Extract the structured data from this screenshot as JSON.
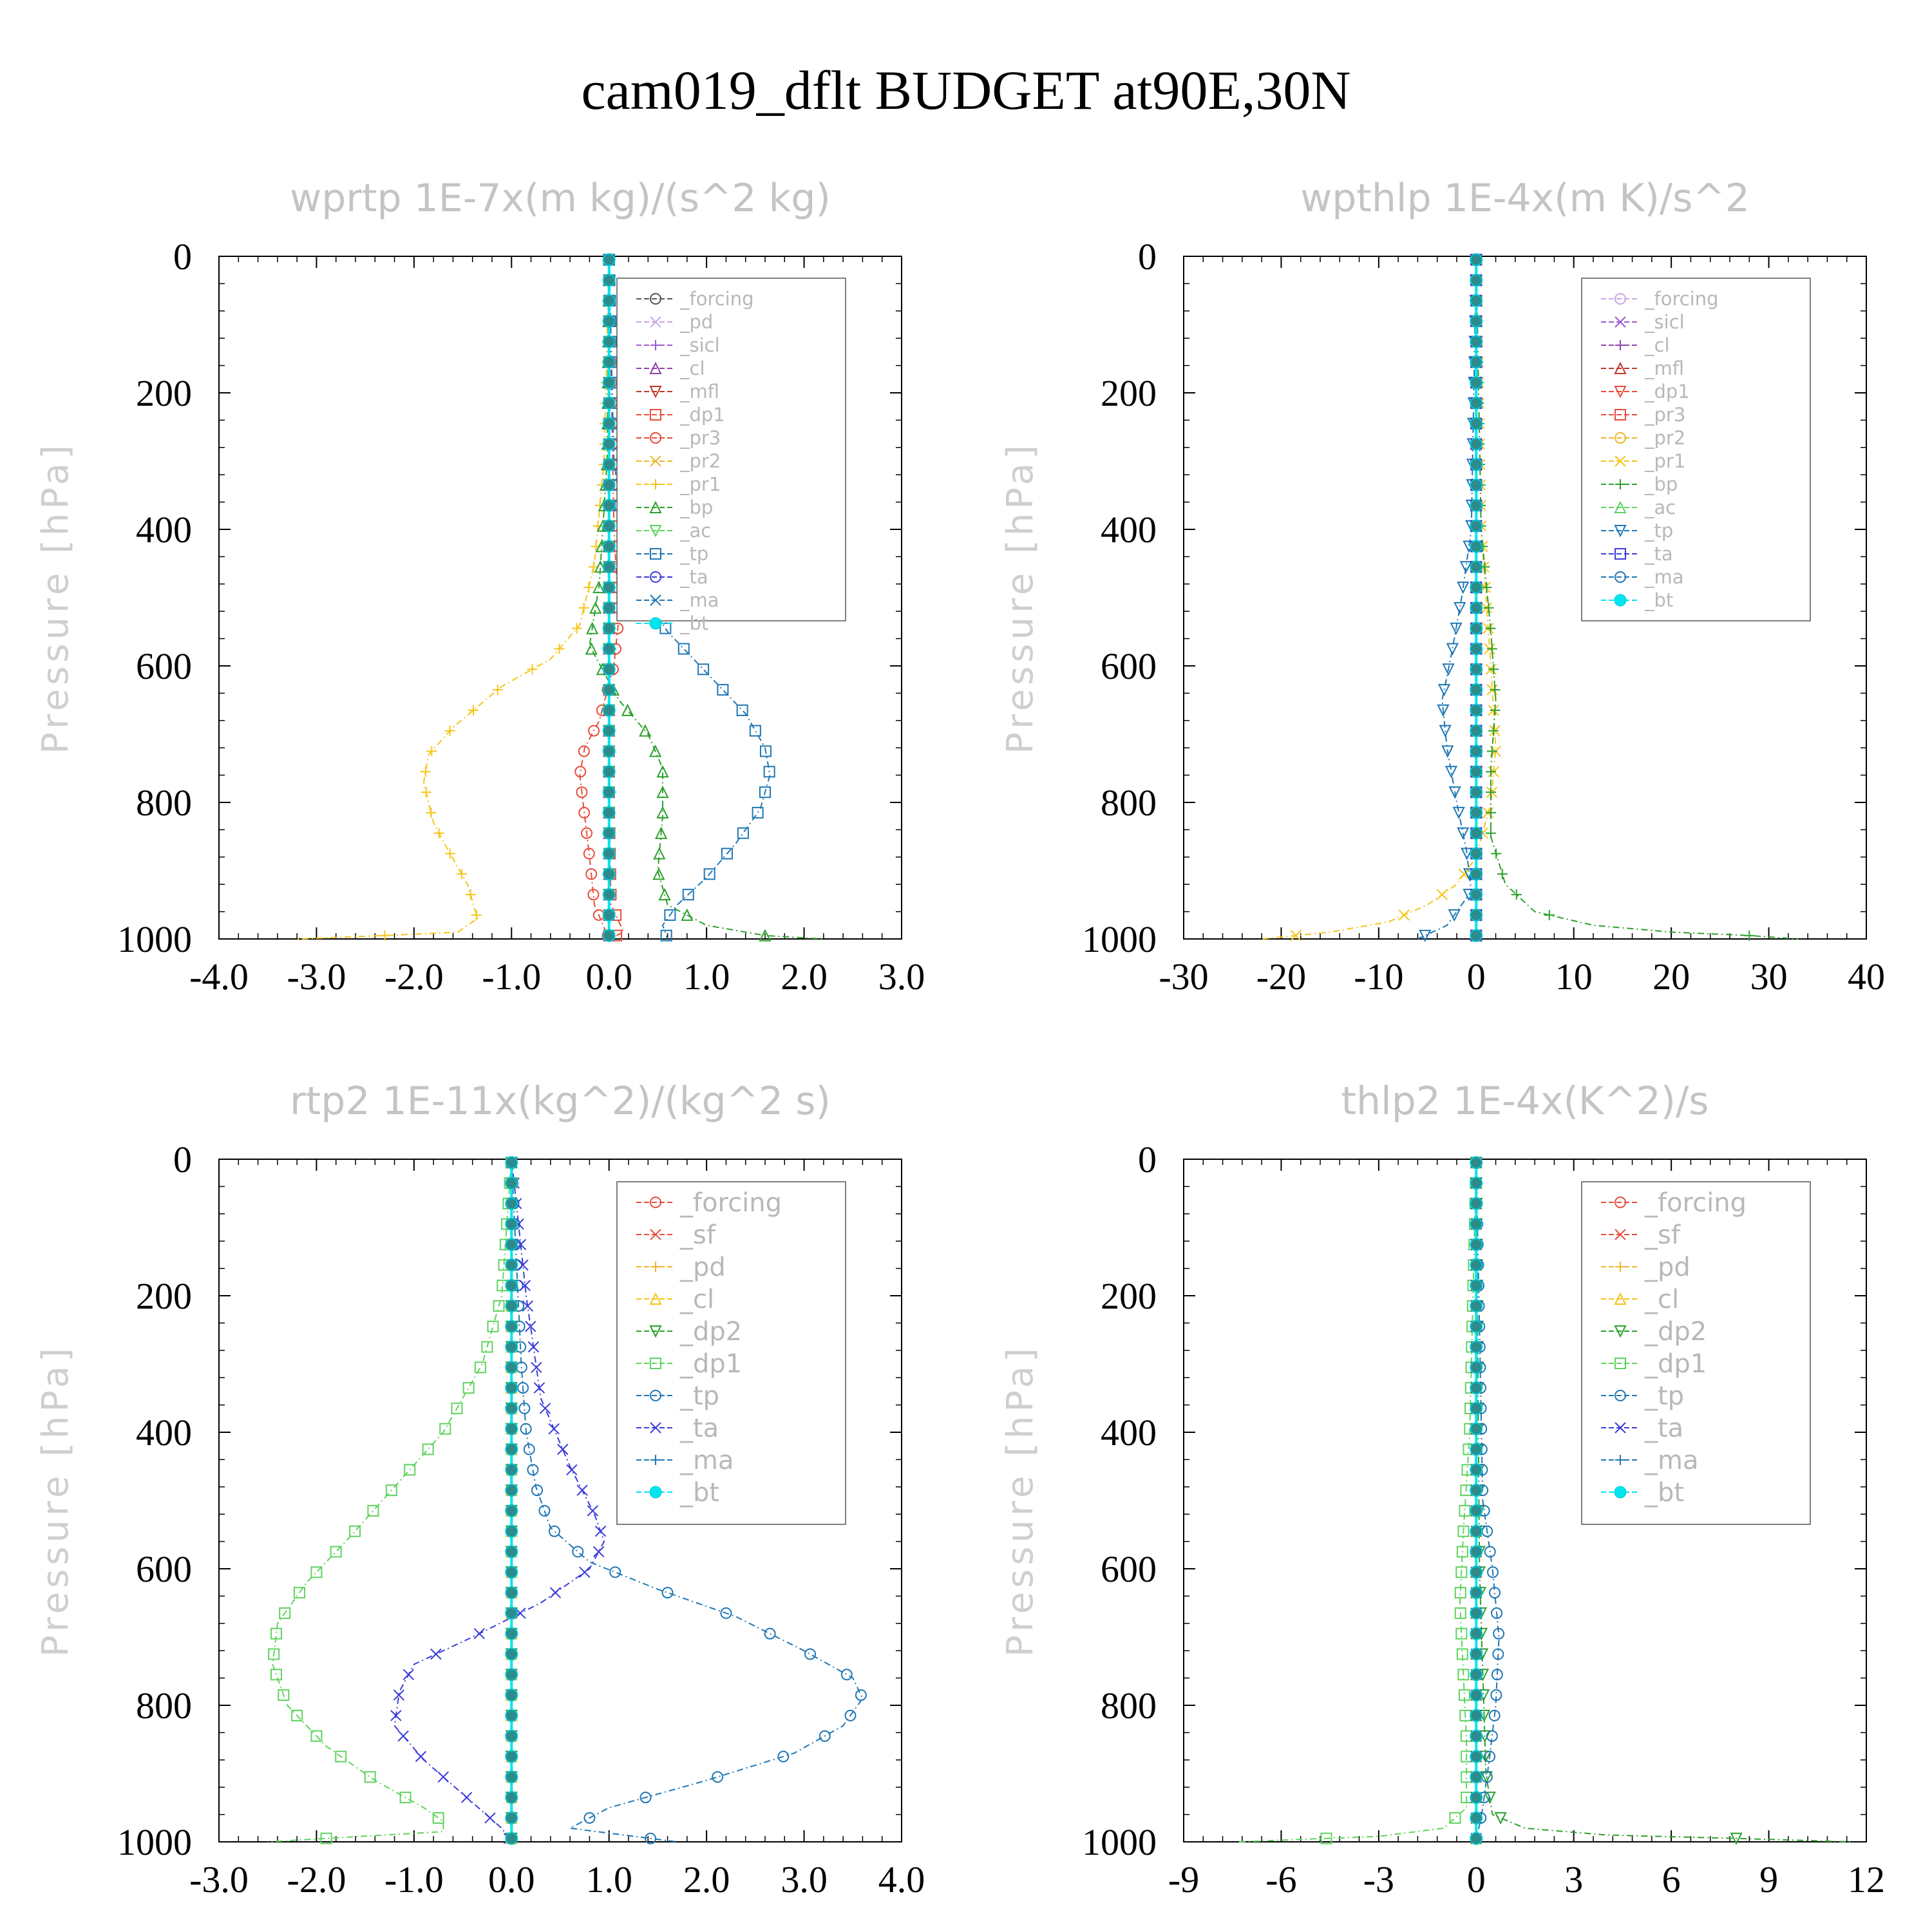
{
  "title": "cam019_dflt  BUDGET at90E,30N",
  "ylabel": "Pressure [hPa]",
  "chart_data": [
    {
      "type": "line",
      "title": "wprtp  1E-7x(m kg)/(s^2 kg)",
      "ylabel": "Pressure [hPa]",
      "xlim": [
        -4,
        3
      ],
      "xticks": [
        "-4.0",
        "-3.0",
        "-2.0",
        "-1.0",
        "0.0",
        "1.0",
        "2.0",
        "3.0"
      ],
      "ylim": [
        1000,
        0
      ],
      "yticks": [
        "0",
        "200",
        "400",
        "600",
        "800",
        "1000"
      ],
      "series": [
        {
          "name": "_forcing",
          "color": "#555555",
          "x": [
            0,
            0
          ],
          "y": [
            0,
            1000
          ]
        },
        {
          "name": "_pd",
          "color": "#c9a6e6",
          "x": [
            0,
            0
          ],
          "y": [
            0,
            1000
          ]
        },
        {
          "name": "_sicl",
          "color": "#9b59d0",
          "x": [
            0,
            0
          ],
          "y": [
            0,
            1000
          ]
        },
        {
          "name": "_cl",
          "color": "#8e44ad",
          "x": [
            0,
            0
          ],
          "y": [
            0,
            1000
          ]
        },
        {
          "name": "_mfl",
          "color": "#c0392b",
          "x": [
            0,
            0
          ],
          "y": [
            0,
            1000
          ]
        },
        {
          "name": "_dp1",
          "color": "#e74c3c",
          "x": [
            0,
            0,
            0.02,
            0.15,
            0
          ],
          "y": [
            0,
            800,
            950,
            990,
            1000
          ]
        },
        {
          "name": "_pr3",
          "color": "#e74c3c",
          "x": [
            0,
            0.05,
            0.1,
            0.05,
            -0.1,
            -0.25,
            -0.3,
            -0.25,
            -0.2,
            -0.15,
            0
          ],
          "y": [
            0,
            400,
            530,
            600,
            680,
            720,
            760,
            820,
            880,
            950,
            1000
          ]
        },
        {
          "name": "_pr2",
          "color": "#f0b429",
          "x": [
            0,
            0
          ],
          "y": [
            0,
            1000
          ]
        },
        {
          "name": "_pr1",
          "color": "#f5c518",
          "x": [
            0,
            -0.05,
            -0.15,
            -0.3,
            -0.6,
            -1.1,
            -1.6,
            -1.85,
            -1.9,
            -1.8,
            -1.65,
            -1.45,
            -1.35,
            -1.55,
            -2.3,
            -3.2
          ],
          "y": [
            0,
            300,
            450,
            540,
            590,
            630,
            690,
            730,
            770,
            830,
            870,
            920,
            970,
            990,
            995,
            1000
          ]
        },
        {
          "name": "_bp",
          "color": "#2ca02c",
          "x": [
            0,
            -0.02,
            -0.1,
            -0.2,
            0.1,
            0.4,
            0.55,
            0.55,
            0.5,
            0.6,
            1.0,
            1.6,
            2.2
          ],
          "y": [
            0,
            300,
            480,
            570,
            650,
            700,
            750,
            820,
            900,
            950,
            980,
            995,
            1000
          ]
        },
        {
          "name": "_ac",
          "color": "#5fd35f",
          "x": [
            0,
            0
          ],
          "y": [
            0,
            1000
          ]
        },
        {
          "name": "_tp",
          "color": "#1f77b4",
          "x": [
            0,
            0.05,
            0.15,
            0.3,
            0.6,
            1.0,
            1.4,
            1.6,
            1.65,
            1.55,
            1.3,
            1.0,
            0.7,
            0.55,
            0.6
          ],
          "y": [
            0,
            300,
            400,
            480,
            550,
            610,
            670,
            720,
            760,
            810,
            860,
            910,
            950,
            980,
            1000
          ]
        },
        {
          "name": "_ta",
          "color": "#3b3bd9",
          "x": [
            0,
            0
          ],
          "y": [
            0,
            1000
          ]
        },
        {
          "name": "_ma",
          "color": "#1f77b4",
          "x": [
            0,
            0
          ],
          "y": [
            0,
            1000
          ]
        },
        {
          "name": "_bt",
          "color": "#00e5ee",
          "x": [
            0,
            0
          ],
          "y": [
            0,
            1000
          ]
        }
      ]
    },
    {
      "type": "line",
      "title": "wpthlp  1E-4x(m K)/s^2",
      "ylabel": "Pressure [hPa]",
      "xlim": [
        -30,
        40
      ],
      "xticks": [
        "-30",
        "-20",
        "-10",
        "0",
        "10",
        "20",
        "30",
        "40"
      ],
      "ylim": [
        1000,
        0
      ],
      "yticks": [
        "0",
        "200",
        "400",
        "600",
        "800",
        "1000"
      ],
      "series": [
        {
          "name": "_forcing",
          "color": "#c9a6e6",
          "x": [
            0,
            0
          ],
          "y": [
            0,
            1000
          ]
        },
        {
          "name": "_sicl",
          "color": "#9b59d0",
          "x": [
            0,
            0
          ],
          "y": [
            0,
            1000
          ]
        },
        {
          "name": "_cl",
          "color": "#8e44ad",
          "x": [
            0,
            0
          ],
          "y": [
            0,
            1000
          ]
        },
        {
          "name": "_mfl",
          "color": "#c0392b",
          "x": [
            0,
            0
          ],
          "y": [
            0,
            1000
          ]
        },
        {
          "name": "_dp1",
          "color": "#e74c3c",
          "x": [
            0,
            0
          ],
          "y": [
            0,
            1000
          ]
        },
        {
          "name": "_pr3",
          "color": "#e74c3c",
          "x": [
            0,
            0
          ],
          "y": [
            0,
            1000
          ]
        },
        {
          "name": "_pr2",
          "color": "#f0b429",
          "x": [
            0,
            0
          ],
          "y": [
            0,
            1000
          ]
        },
        {
          "name": "_pr1",
          "color": "#f5c518",
          "x": [
            0,
            0.5,
            1.5,
            2,
            1.5,
            0,
            -2,
            -5,
            -9,
            -15,
            -22
          ],
          "y": [
            0,
            400,
            600,
            720,
            800,
            880,
            920,
            950,
            975,
            990,
            1000
          ]
        },
        {
          "name": "_bp",
          "color": "#2ca02c",
          "x": [
            0,
            0.5,
            1.5,
            2,
            1.5,
            1.5,
            3,
            6,
            12,
            20,
            28,
            33
          ],
          "y": [
            0,
            400,
            550,
            650,
            750,
            850,
            920,
            960,
            980,
            990,
            995,
            1000
          ]
        },
        {
          "name": "_ac",
          "color": "#5fd35f",
          "x": [
            0,
            0
          ],
          "y": [
            0,
            1000
          ]
        },
        {
          "name": "_tp",
          "color": "#1f77b4",
          "x": [
            0,
            -0.5,
            -1.5,
            -2.5,
            -3.5,
            -3,
            -2,
            -1,
            -0.5,
            -3,
            -6
          ],
          "y": [
            0,
            400,
            500,
            580,
            650,
            720,
            800,
            870,
            930,
            980,
            1000
          ]
        },
        {
          "name": "_ta",
          "color": "#3b3bd9",
          "x": [
            0,
            0
          ],
          "y": [
            0,
            1000
          ]
        },
        {
          "name": "_ma",
          "color": "#1f77b4",
          "x": [
            0,
            0
          ],
          "y": [
            0,
            1000
          ]
        },
        {
          "name": "_bt",
          "color": "#00e5ee",
          "x": [
            0,
            0
          ],
          "y": [
            0,
            1000
          ]
        }
      ]
    },
    {
      "type": "line",
      "title": "rtp2  1E-11x(kg^2)/(kg^2 s)",
      "ylabel": "Pressure [hPa]",
      "xlim": [
        -3,
        4
      ],
      "xticks": [
        "-3.0",
        "-2.0",
        "-1.0",
        "0.0",
        "1.0",
        "2.0",
        "3.0",
        "4.0"
      ],
      "ylim": [
        1000,
        0
      ],
      "yticks": [
        "0",
        "200",
        "400",
        "600",
        "800",
        "1000"
      ],
      "series": [
        {
          "name": "_forcing",
          "color": "#e74c3c",
          "x": [
            0,
            0
          ],
          "y": [
            0,
            1000
          ]
        },
        {
          "name": "_sf",
          "color": "#e74c3c",
          "x": [
            0,
            0
          ],
          "y": [
            0,
            1000
          ]
        },
        {
          "name": "_pd",
          "color": "#f0b429",
          "x": [
            0,
            0
          ],
          "y": [
            0,
            1000
          ]
        },
        {
          "name": "_cl",
          "color": "#f5c518",
          "x": [
            0,
            0
          ],
          "y": [
            0,
            1000
          ]
        },
        {
          "name": "_dp2",
          "color": "#2ca02c",
          "x": [
            0,
            0
          ],
          "y": [
            0,
            1000
          ]
        },
        {
          "name": "_dp1",
          "color": "#5fd35f",
          "x": [
            0,
            -0.1,
            -0.3,
            -0.7,
            -1.2,
            -1.7,
            -2.1,
            -2.4,
            -2.45,
            -2.3,
            -1.9,
            -1.4,
            -0.9,
            -0.7,
            -0.7,
            -2.5
          ],
          "y": [
            0,
            200,
            300,
            400,
            480,
            560,
            620,
            680,
            740,
            800,
            860,
            910,
            950,
            970,
            985,
            1000
          ]
        },
        {
          "name": "_tp",
          "color": "#1f77b4",
          "x": [
            0,
            0.1,
            0.15,
            0.25,
            0.4,
            0.8,
            1.5,
            2.3,
            3.0,
            3.5,
            3.6,
            3.4,
            2.9,
            2.0,
            1.0,
            0.6,
            1.7
          ],
          "y": [
            0,
            300,
            400,
            480,
            540,
            590,
            630,
            670,
            720,
            760,
            790,
            830,
            870,
            910,
            950,
            980,
            1000
          ]
        },
        {
          "name": "_ta",
          "color": "#3b3bd9",
          "x": [
            0,
            0.15,
            0.3,
            0.6,
            0.85,
            0.95,
            0.8,
            0.3,
            -0.4,
            -1.0,
            -1.15,
            -1.2,
            -0.9,
            -0.5,
            -0.1,
            0
          ],
          "y": [
            0,
            200,
            350,
            450,
            520,
            560,
            600,
            650,
            700,
            740,
            780,
            830,
            880,
            930,
            980,
            1000
          ]
        },
        {
          "name": "_ma",
          "color": "#1f77b4",
          "x": [
            0,
            0
          ],
          "y": [
            0,
            1000
          ]
        },
        {
          "name": "_bt",
          "color": "#00e5ee",
          "x": [
            0,
            0
          ],
          "y": [
            0,
            1000
          ]
        }
      ]
    },
    {
      "type": "line",
      "title": "thlp2  1E-4x(K^2)/s",
      "ylabel": "Pressure [hPa]",
      "xlim": [
        -9,
        12
      ],
      "xticks": [
        "-9",
        "-6",
        "-3",
        "0",
        "3",
        "6",
        "9",
        "12"
      ],
      "ylim": [
        1000,
        0
      ],
      "yticks": [
        "0",
        "200",
        "400",
        "600",
        "800",
        "1000"
      ],
      "series": [
        {
          "name": "_forcing",
          "color": "#e74c3c",
          "x": [
            0,
            0
          ],
          "y": [
            0,
            1000
          ]
        },
        {
          "name": "_sf",
          "color": "#e74c3c",
          "x": [
            0,
            0
          ],
          "y": [
            0,
            1000
          ]
        },
        {
          "name": "_pd",
          "color": "#f0b429",
          "x": [
            0,
            0
          ],
          "y": [
            0,
            1000
          ]
        },
        {
          "name": "_cl",
          "color": "#f5c518",
          "x": [
            0,
            0
          ],
          "y": [
            0,
            1000
          ]
        },
        {
          "name": "_dp2",
          "color": "#2ca02c",
          "x": [
            0,
            0.1,
            0.3,
            0.5,
            1.5,
            4,
            8,
            11.5
          ],
          "y": [
            0,
            600,
            900,
            960,
            980,
            990,
            995,
            1000
          ]
        },
        {
          "name": "_dp1",
          "color": "#5fd35f",
          "x": [
            0,
            -0.2,
            -0.4,
            -0.5,
            -0.4,
            -0.3,
            -0.3,
            -1,
            -3,
            -7.3
          ],
          "y": [
            0,
            400,
            550,
            650,
            750,
            850,
            950,
            980,
            992,
            1000
          ]
        },
        {
          "name": "_tp",
          "color": "#1f77b4",
          "x": [
            0,
            0.2,
            0.5,
            0.7,
            0.6,
            0.4,
            0.2,
            0
          ],
          "y": [
            0,
            500,
            600,
            700,
            800,
            880,
            950,
            1000
          ]
        },
        {
          "name": "_ta",
          "color": "#3b3bd9",
          "x": [
            0,
            0
          ],
          "y": [
            0,
            1000
          ]
        },
        {
          "name": "_ma",
          "color": "#1f77b4",
          "x": [
            0,
            0
          ],
          "y": [
            0,
            1000
          ]
        },
        {
          "name": "_bt",
          "color": "#00e5ee",
          "x": [
            0,
            0
          ],
          "y": [
            0,
            1000
          ]
        }
      ]
    }
  ]
}
